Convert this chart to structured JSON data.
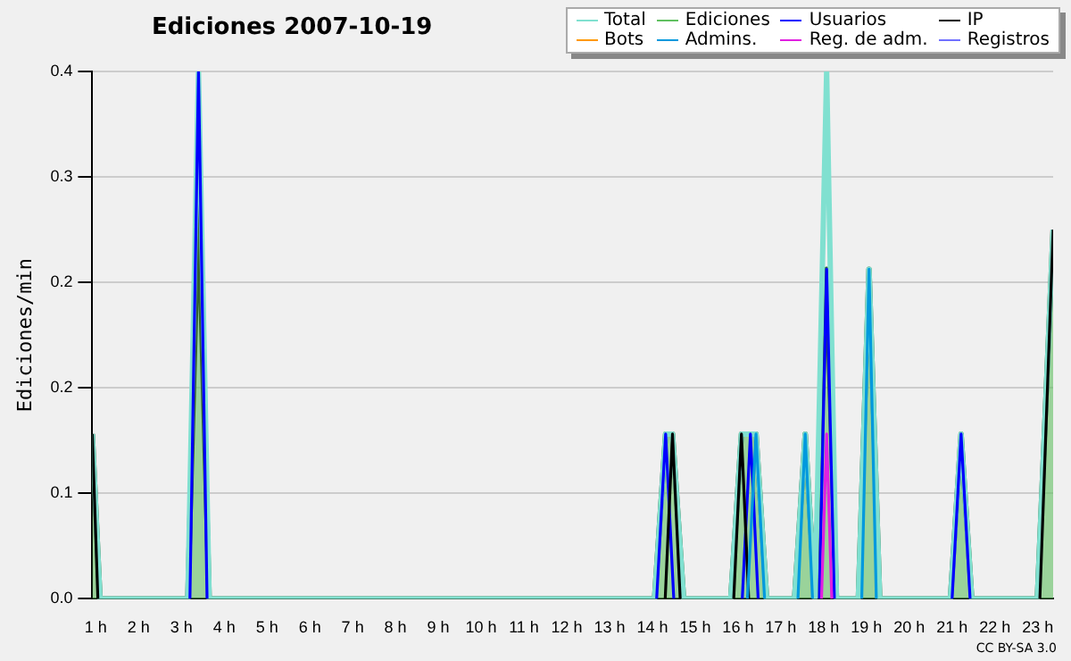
{
  "chart_data": {
    "type": "line",
    "title": "Ediciones  2007-10-19",
    "ylabel": "Ediciones/min",
    "annotations": [
      "CC BY-SA 3.0"
    ],
    "x": [
      0.92,
      1.1,
      3.15,
      3.4,
      3.65,
      14.05,
      14.31,
      14.47,
      14.73,
      15.83,
      16.08,
      16.29,
      16.42,
      16.67,
      17.32,
      17.57,
      17.8,
      18.07,
      18.3,
      18.81,
      19.06,
      19.31,
      20.96,
      21.21,
      21.46,
      22.99,
      23.36
    ],
    "xlim": [
      0.92,
      23.36
    ],
    "xticks": [
      {
        "value": 1,
        "label": "1 h"
      },
      {
        "value": 2,
        "label": "2 h"
      },
      {
        "value": 3,
        "label": "3 h"
      },
      {
        "value": 4,
        "label": "4 h"
      },
      {
        "value": 5,
        "label": "5 h"
      },
      {
        "value": 6,
        "label": "6 h"
      },
      {
        "value": 7,
        "label": "7 h"
      },
      {
        "value": 8,
        "label": "8 h"
      },
      {
        "value": 9,
        "label": "9 h"
      },
      {
        "value": 10,
        "label": "10 h"
      },
      {
        "value": 11,
        "label": "11 h"
      },
      {
        "value": 12,
        "label": "12 h"
      },
      {
        "value": 13,
        "label": "13 h"
      },
      {
        "value": 14,
        "label": "14 h"
      },
      {
        "value": 15,
        "label": "15 h"
      },
      {
        "value": 16,
        "label": "16 h"
      },
      {
        "value": 17,
        "label": "17 h"
      },
      {
        "value": 18,
        "label": "18 h"
      },
      {
        "value": 19,
        "label": "19 h"
      },
      {
        "value": 20,
        "label": "20 h"
      },
      {
        "value": 21,
        "label": "21 h"
      },
      {
        "value": 22,
        "label": "22 h"
      },
      {
        "value": 23,
        "label": "23 h"
      }
    ],
    "ylim": [
      0,
      0.4
    ],
    "yticks": [
      {
        "value": 0,
        "label": "0.0"
      },
      {
        "value": 0.08,
        "label": "0.1"
      },
      {
        "value": 0.16,
        "label": "0.2"
      },
      {
        "value": 0.24,
        "label": "0.2"
      },
      {
        "value": 0.32,
        "label": "0.3"
      },
      {
        "value": 0.4,
        "label": "0.4"
      }
    ],
    "grid": "y",
    "legend": "top right",
    "marker": "none",
    "line_style": "solid",
    "series": [
      {
        "name": "Total",
        "color": "#80e0d0",
        "values": [
          0.125,
          0,
          0,
          0.4,
          0,
          0,
          0.125,
          0.125,
          0,
          0,
          0.125,
          0.125,
          0.125,
          0,
          0,
          0.125,
          0,
          0.4,
          0,
          0,
          0.25,
          0,
          0,
          0.125,
          0,
          0,
          0.28
        ]
      },
      {
        "name": "Ediciones",
        "type": "area",
        "color": "#60c060",
        "values": [
          0.125,
          0,
          0,
          0.3,
          0,
          0,
          0.125,
          0.125,
          0,
          0,
          0.125,
          0.125,
          0.125,
          0,
          0,
          0.125,
          0,
          0.25,
          0,
          0,
          0.25,
          0,
          0,
          0.125,
          0,
          0,
          0.28
        ]
      },
      {
        "name": "Usuarios",
        "color": "#0000ff",
        "x": [
          3.2,
          3.4,
          3.6,
          3.7,
          14.1,
          14.31,
          14.5,
          14.6,
          16.1,
          16.29,
          16.47,
          16.6,
          17.9,
          18.07,
          18.25,
          18.4,
          21.0,
          21.21,
          21.42
        ],
        "values": [
          0,
          0.4,
          0,
          null,
          0,
          0.125,
          0,
          null,
          0,
          0.125,
          0,
          null,
          0,
          0.25,
          0,
          null,
          0,
          0.125,
          0
        ]
      },
      {
        "name": "IP",
        "color": "#000000",
        "x": [
          0.92,
          1.05,
          1.2,
          14.3,
          14.47,
          14.65,
          14.8,
          15.9,
          16.08,
          16.25,
          16.4,
          23.05,
          23.36
        ],
        "values": [
          0.125,
          0,
          null,
          0,
          0.125,
          0,
          null,
          0,
          0.125,
          0,
          null,
          0,
          0.28
        ]
      },
      {
        "name": "Bots",
        "color": "#ff9900",
        "values": [
          null,
          null,
          null,
          null,
          null,
          null,
          null,
          null,
          null,
          null,
          null,
          null,
          null,
          null,
          null,
          null,
          null,
          null,
          null,
          null,
          null,
          null,
          null,
          null,
          null,
          null,
          null
        ]
      },
      {
        "name": "Admins.",
        "color": "#0099dd",
        "x": [
          16.22,
          16.42,
          16.62,
          16.8,
          17.4,
          17.57,
          17.74,
          18.5,
          18.89,
          19.06,
          19.23
        ],
        "values": [
          0,
          0.125,
          0,
          null,
          0,
          0.125,
          0,
          null,
          0,
          0.25,
          0
        ]
      },
      {
        "name": "Reg. de adm.",
        "color": "#e020e0",
        "x": [
          17.95,
          18.07,
          18.19
        ],
        "values": [
          0,
          0.125,
          0
        ]
      },
      {
        "name": "Registros",
        "color": "#7070ff",
        "values": [
          null,
          null,
          null,
          null,
          null,
          null,
          null,
          null,
          null,
          null,
          null,
          null,
          null,
          null,
          null,
          null,
          null,
          null,
          null,
          null,
          null,
          null,
          null,
          null,
          null,
          null,
          null
        ]
      }
    ]
  }
}
